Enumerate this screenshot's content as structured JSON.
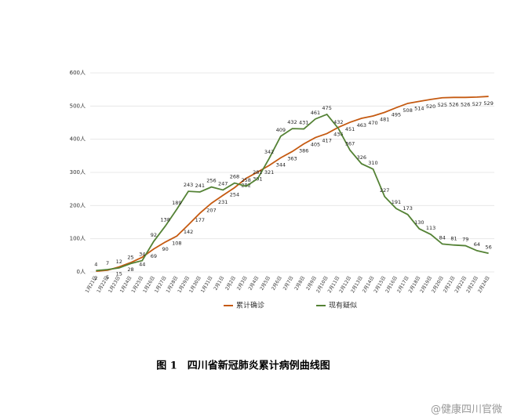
{
  "chart_data": {
    "type": "line",
    "title": "图 1　四川省新冠肺炎累计病例曲线图",
    "watermark": "@健康四川官微",
    "categories": [
      "1月21日",
      "1月22日",
      "1月23日",
      "1月24日",
      "1月25日",
      "1月26日",
      "1月27日",
      "1月28日",
      "1月29日",
      "1月30日",
      "1月31日",
      "2月1日",
      "2月2日",
      "2月3日",
      "2月4日",
      "2月5日",
      "2月6日",
      "2月7日",
      "2月8日",
      "2月9日",
      "2月10日",
      "2月11日",
      "2月12日",
      "2月13日",
      "2月14日",
      "2月15日",
      "2月16日",
      "2月17日",
      "2月18日",
      "2月19日",
      "2月20日",
      "2月21日",
      "2月22日",
      "2月23日",
      "2月24日"
    ],
    "series": [
      {
        "name": "累计确诊",
        "color": "#c55a11",
        "values": [
          2,
          5,
          15,
          28,
          44,
          69,
          90,
          108,
          142,
          177,
          207,
          231,
          254,
          282,
          301,
          321,
          344,
          363,
          386,
          405,
          417,
          436,
          451,
          463,
          470,
          481,
          495,
          508,
          514,
          520,
          525,
          526,
          526,
          527,
          529
        ]
      },
      {
        "name": "现有疑似",
        "color": "#548235",
        "values": [
          4,
          7,
          12,
          25,
          34,
          92,
          138,
          189,
          243,
          241,
          256,
          247,
          268,
          258,
          281,
          342,
          409,
          432,
          431,
          461,
          475,
          432,
          367,
          326,
          310,
          227,
          191,
          173,
          130,
          113,
          84,
          81,
          79,
          64,
          56
        ]
      }
    ],
    "ylim": [
      0,
      600
    ],
    "yticks": [
      {
        "value": 0,
        "label": "0人"
      },
      {
        "value": 100,
        "label": "100人"
      },
      {
        "value": 200,
        "label": "200人"
      },
      {
        "value": 300,
        "label": "300人"
      },
      {
        "value": 400,
        "label": "400人"
      },
      {
        "value": 500,
        "label": "500人"
      },
      {
        "value": 600,
        "label": "600人"
      }
    ],
    "grid": true,
    "legend": "bottom"
  }
}
